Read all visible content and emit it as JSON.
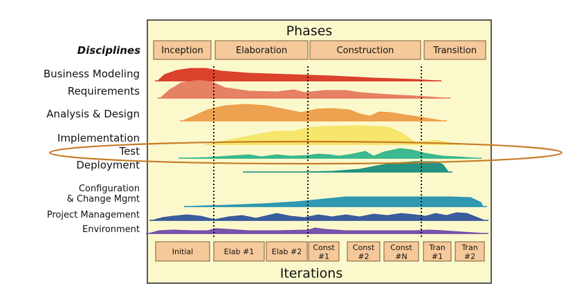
{
  "title": "Phases",
  "footer": "Iterations",
  "disciplines_heading": "Disciplines",
  "phases": [
    {
      "label": "Inception"
    },
    {
      "label": "Elaboration"
    },
    {
      "label": "Construction"
    },
    {
      "label": "Transition"
    }
  ],
  "iterations": [
    {
      "lines": [
        "Initial"
      ]
    },
    {
      "lines": [
        "Elab #1"
      ]
    },
    {
      "lines": [
        "Elab #2"
      ]
    },
    {
      "lines": [
        "Const",
        "#1"
      ]
    },
    {
      "lines": [
        "Const",
        "#2"
      ]
    },
    {
      "lines": [
        "Const",
        "#N"
      ]
    },
    {
      "lines": [
        "Tran",
        "#1"
      ]
    },
    {
      "lines": [
        "Tran",
        "#2"
      ]
    }
  ],
  "disciplines": [
    {
      "lines": [
        "Business Modeling"
      ],
      "color": "#d8331f",
      "highlighted": false
    },
    {
      "lines": [
        "Requirements"
      ],
      "color": "#e5765a",
      "highlighted": false
    },
    {
      "lines": [
        "Analysis & Design"
      ],
      "color": "#ec9a44",
      "highlighted": false
    },
    {
      "lines": [
        "Implementation"
      ],
      "color": "#f5e463",
      "highlighted": false
    },
    {
      "lines": [
        "Test"
      ],
      "color": "#2cb38a",
      "highlighted": true
    },
    {
      "lines": [
        "Deployment"
      ],
      "color": "#128a7c",
      "highlighted": false
    },
    {
      "lines": [
        "Configuration",
        "& Change Mgmt"
      ],
      "color": "#1f8fb0",
      "highlighted": false
    },
    {
      "lines": [
        "Project Management"
      ],
      "color": "#2b4f9a",
      "highlighted": false
    },
    {
      "lines": [
        "Environment"
      ],
      "color": "#6b47a8",
      "highlighted": false
    }
  ],
  "colors": {
    "panel_bg": "#fbf8cc",
    "box_fill": "#f6c99a",
    "highlight_ring": "#c77a26"
  }
}
